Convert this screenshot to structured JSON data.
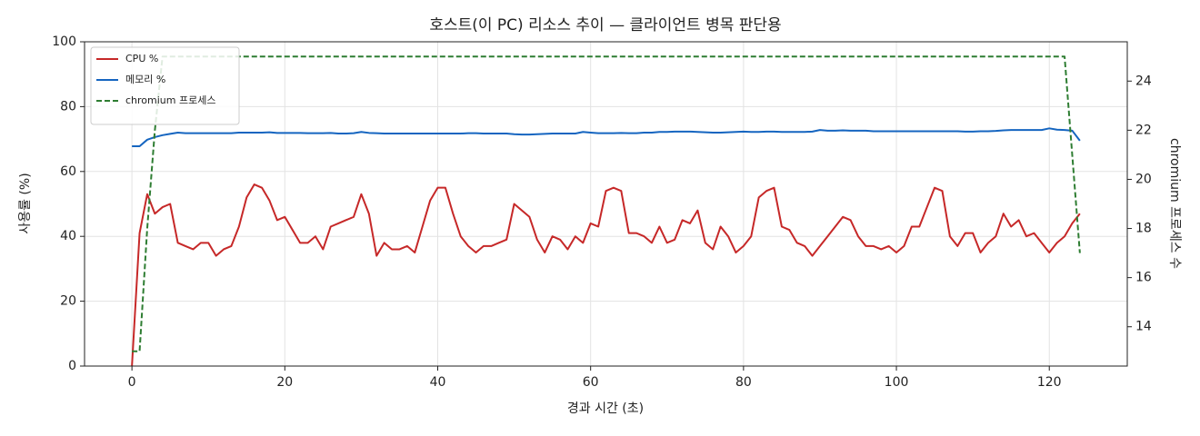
{
  "chart_data": {
    "type": "line",
    "title": "호스트(이 PC) 리소스 추이 — 클라이언트 병목 판단용",
    "xlabel": "경과 시간 (초)",
    "ylabel": "사용률 (%)",
    "y2label": "chromium 프로세스 수",
    "x": [
      0,
      1,
      2,
      3,
      4,
      5,
      6,
      7,
      8,
      9,
      10,
      11,
      12,
      13,
      14,
      15,
      16,
      17,
      18,
      19,
      20,
      21,
      22,
      23,
      24,
      25,
      26,
      27,
      28,
      29,
      30,
      31,
      32,
      33,
      34,
      35,
      36,
      37,
      38,
      39,
      40,
      41,
      42,
      43,
      44,
      45,
      46,
      47,
      48,
      49,
      50,
      51,
      52,
      53,
      54,
      55,
      56,
      57,
      58,
      59,
      60,
      61,
      62,
      63,
      64,
      65,
      66,
      67,
      68,
      69,
      70,
      71,
      72,
      73,
      74,
      75,
      76,
      77,
      78,
      79,
      80,
      81,
      82,
      83,
      84,
      85,
      86,
      87,
      88,
      89,
      90,
      91,
      92,
      93,
      94,
      95,
      96,
      97,
      98,
      99,
      100,
      101,
      102,
      103,
      104,
      105,
      106,
      107,
      108,
      109,
      110,
      111,
      112,
      113,
      114,
      115,
      116,
      117,
      118,
      119,
      120,
      121,
      122,
      123,
      124
    ],
    "series": [
      {
        "name": "CPU %",
        "color": "#c62828",
        "linestyle": "solid",
        "axis": "y",
        "values": [
          0,
          41,
          53,
          47,
          49,
          50,
          38,
          37,
          36,
          38,
          38,
          34,
          36,
          37,
          43,
          52,
          56,
          55,
          51,
          45,
          46,
          42,
          38,
          38,
          40,
          36,
          43,
          44,
          45,
          46,
          53,
          47,
          34,
          38,
          36,
          36,
          37,
          35,
          43,
          51,
          55,
          55,
          47,
          40,
          37,
          35,
          37,
          37,
          38,
          39,
          50,
          48,
          46,
          39,
          35,
          40,
          39,
          36,
          40,
          38,
          44,
          43,
          54,
          55,
          54,
          41,
          41,
          40,
          38,
          43,
          38,
          39,
          45,
          44,
          48,
          38,
          36,
          43,
          40,
          35,
          37,
          40,
          52,
          54,
          55,
          43,
          42,
          38,
          37,
          34,
          37,
          40,
          43,
          46,
          45,
          40,
          37,
          37,
          36,
          37,
          35,
          37,
          43,
          43,
          49,
          55,
          54,
          40,
          37,
          41,
          41,
          35,
          38,
          40,
          47,
          43,
          45,
          40,
          41,
          38,
          35,
          38,
          40,
          44,
          47
        ]
      },
      {
        "name": "메모리 %",
        "color": "#1565c0",
        "linestyle": "solid",
        "axis": "y",
        "values": [
          67.8,
          67.8,
          69.8,
          70.6,
          71.2,
          71.6,
          72.0,
          71.8,
          71.8,
          71.8,
          71.8,
          71.8,
          71.8,
          71.8,
          72.0,
          72.0,
          72.0,
          72.0,
          72.1,
          71.9,
          71.9,
          71.9,
          71.9,
          71.8,
          71.8,
          71.8,
          71.9,
          71.7,
          71.7,
          71.8,
          72.2,
          71.9,
          71.8,
          71.7,
          71.7,
          71.7,
          71.7,
          71.7,
          71.7,
          71.7,
          71.7,
          71.7,
          71.7,
          71.7,
          71.8,
          71.8,
          71.7,
          71.7,
          71.7,
          71.7,
          71.5,
          71.4,
          71.4,
          71.5,
          71.6,
          71.7,
          71.7,
          71.7,
          71.7,
          72.2,
          72.0,
          71.8,
          71.8,
          71.8,
          71.9,
          71.8,
          71.8,
          72.0,
          72.0,
          72.2,
          72.2,
          72.3,
          72.3,
          72.3,
          72.2,
          72.1,
          72.0,
          72.0,
          72.1,
          72.2,
          72.3,
          72.2,
          72.2,
          72.3,
          72.3,
          72.2,
          72.2,
          72.2,
          72.2,
          72.3,
          72.8,
          72.6,
          72.6,
          72.7,
          72.6,
          72.6,
          72.6,
          72.4,
          72.4,
          72.4,
          72.4,
          72.4,
          72.4,
          72.4,
          72.4,
          72.4,
          72.4,
          72.4,
          72.4,
          72.3,
          72.3,
          72.4,
          72.4,
          72.5,
          72.7,
          72.8,
          72.8,
          72.8,
          72.8,
          72.8,
          73.3,
          72.9,
          72.8,
          72.6,
          69.5
        ]
      },
      {
        "name": "chromium 프로세스",
        "color": "#2e7d32",
        "linestyle": "dashed",
        "axis": "y2",
        "values": [
          13,
          13,
          18,
          22,
          25,
          25,
          25,
          25,
          25,
          25,
          25,
          25,
          25,
          25,
          25,
          25,
          25,
          25,
          25,
          25,
          25,
          25,
          25,
          25,
          25,
          25,
          25,
          25,
          25,
          25,
          25,
          25,
          25,
          25,
          25,
          25,
          25,
          25,
          25,
          25,
          25,
          25,
          25,
          25,
          25,
          25,
          25,
          25,
          25,
          25,
          25,
          25,
          25,
          25,
          25,
          25,
          25,
          25,
          25,
          25,
          25,
          25,
          25,
          25,
          25,
          25,
          25,
          25,
          25,
          25,
          25,
          25,
          25,
          25,
          25,
          25,
          25,
          25,
          25,
          25,
          25,
          25,
          25,
          25,
          25,
          25,
          25,
          25,
          25,
          25,
          25,
          25,
          25,
          25,
          25,
          25,
          25,
          25,
          25,
          25,
          25,
          25,
          25,
          25,
          25,
          25,
          25,
          25,
          25,
          25,
          25,
          25,
          25,
          25,
          25,
          25,
          25,
          25,
          25,
          25,
          25,
          25,
          25,
          21,
          17
        ]
      }
    ],
    "xlim": [
      -6.2,
      130.2
    ],
    "xticks": [
      0,
      20,
      40,
      60,
      80,
      100,
      120
    ],
    "ylim": [
      0,
      100
    ],
    "yticks": [
      0,
      20,
      40,
      60,
      80,
      100
    ],
    "y2lim": [
      12.4,
      25.6
    ],
    "y2ticks": [
      14,
      16,
      18,
      20,
      22,
      24
    ],
    "grid": true,
    "legend": "upper-left"
  }
}
